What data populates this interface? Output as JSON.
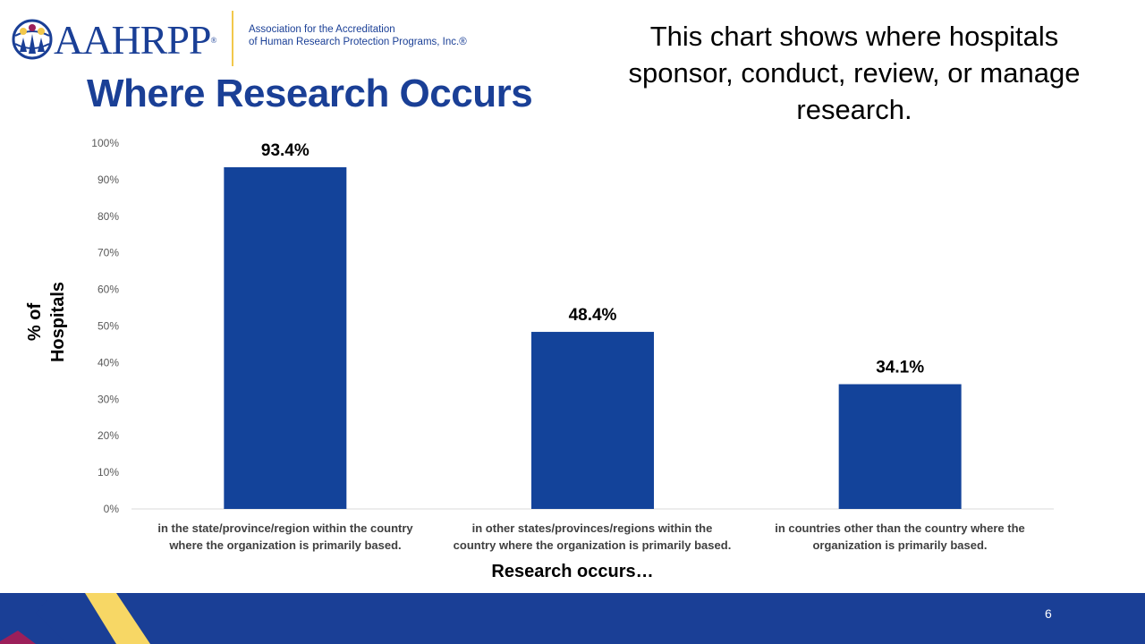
{
  "logo": {
    "wordmark": "AAHRPP",
    "reg_mark": "®",
    "tagline_line1": "Association for the Accreditation",
    "tagline_line2": "of Human Research Protection Programs, Inc.®"
  },
  "title": "Where Research Occurs",
  "note": "This chart shows where hospitals sponsor, conduct, review, or manage research.",
  "footer": {
    "page_number": "6"
  },
  "colors": {
    "bar": "#13439a",
    "brand_blue": "#1a3f96",
    "accent_yellow": "#f7d765",
    "accent_magenta": "#9c1f5a"
  },
  "chart_data": {
    "type": "bar",
    "categories": [
      [
        "in the state/province/region within the country",
        "where the organization is primarily based."
      ],
      [
        "in other states/provinces/regions within the",
        "country where the organization is primarily based."
      ],
      [
        "in countries other than the country where the",
        "organization is primarily based."
      ]
    ],
    "values": [
      93.4,
      48.4,
      34.1
    ],
    "data_labels": [
      "93.4%",
      "48.4%",
      "34.1%"
    ],
    "ylabel_lines": [
      "% of",
      "Hospitals"
    ],
    "xlabel": "Research occurs…",
    "ylim": [
      0,
      100
    ],
    "yticks": [
      0,
      10,
      20,
      30,
      40,
      50,
      60,
      70,
      80,
      90,
      100
    ],
    "ytick_labels": [
      "0%",
      "10%",
      "20%",
      "30%",
      "40%",
      "50%",
      "60%",
      "70%",
      "80%",
      "90%",
      "100%"
    ],
    "grid": false,
    "legend": "none"
  }
}
